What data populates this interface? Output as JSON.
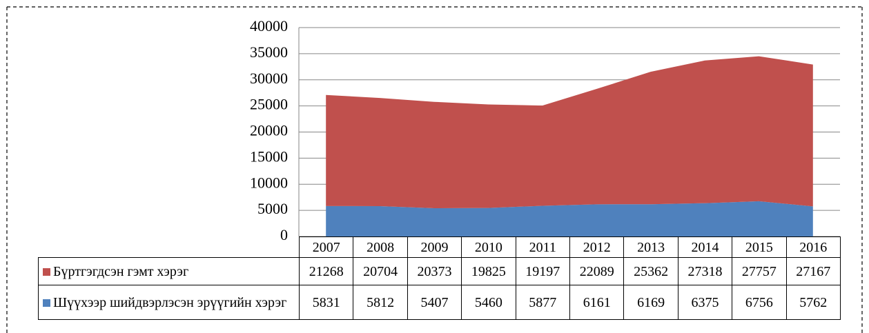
{
  "chart_data": {
    "type": "stacked_area",
    "categories": [
      "2007",
      "2008",
      "2009",
      "2010",
      "2011",
      "2012",
      "2013",
      "2014",
      "2015",
      "2016"
    ],
    "series": [
      {
        "name": "Бүртгэгдсэн гэмт хэрэг",
        "color": "#c0504d",
        "values": [
          21268,
          20704,
          20373,
          19825,
          19197,
          22089,
          25362,
          27318,
          27757,
          27167
        ]
      },
      {
        "name": "Шүүхээр шийдвэрлэсэн эрүүгийн хэрэг",
        "color": "#4f81bd",
        "values": [
          5831,
          5812,
          5407,
          5460,
          5877,
          6161,
          6169,
          6375,
          6756,
          5762
        ]
      }
    ],
    "stack_order": "bottom_last",
    "ylim": [
      0,
      40000
    ],
    "yticks": [
      0,
      5000,
      10000,
      15000,
      20000,
      25000,
      30000,
      35000,
      40000
    ],
    "grid": true
  }
}
